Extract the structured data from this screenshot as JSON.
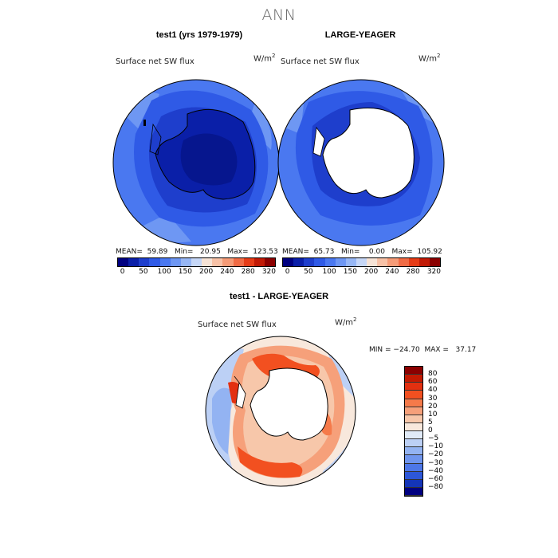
{
  "title": "ANN",
  "panels": {
    "left": {
      "title": "test1 (yrs 1979-1979)",
      "variable": "Surface net SW flux",
      "units_base": "W/m",
      "units_exp": "2",
      "stats": "MEAN=  59.89   Min=   20.95   Max=  123.53"
    },
    "right": {
      "title": "LARGE-YEAGER",
      "variable": "Surface net SW flux",
      "units_base": "W/m",
      "units_exp": "2",
      "stats": "MEAN=  65.73   Min=    0.00   Max=  105.92"
    },
    "diff": {
      "title": "test1 - LARGE-YEAGER",
      "variable": "Surface net SW flux",
      "units_base": "W/m",
      "units_exp": "2",
      "minmax": "MIN = −24.70  MAX =   37.17"
    }
  },
  "colorbar_top": {
    "colors": [
      "#000080",
      "#0a1fa8",
      "#1e3ecc",
      "#2f5ae6",
      "#4a78f0",
      "#6e97f3",
      "#97b7f5",
      "#c6d7f7",
      "#f6e3d6",
      "#f7c1a6",
      "#f59b77",
      "#f06b45",
      "#e63c17",
      "#c11a06",
      "#8b0000"
    ],
    "labels": [
      "0",
      "50",
      "100",
      "150",
      "200",
      "240",
      "280",
      "320"
    ]
  },
  "colorbar_diff": {
    "colors": [
      "#8b0000",
      "#c31a02",
      "#e33010",
      "#f25020",
      "#f57a4a",
      "#f6a07a",
      "#f7c7aa",
      "#f8e8dc",
      "#e1ebf8",
      "#bcd0f5",
      "#93b3f2",
      "#6f95ee",
      "#4d77e8",
      "#2d57d8",
      "#1435b8",
      "#000080"
    ],
    "labels": [
      "80",
      "60",
      "40",
      "30",
      "20",
      "10",
      "5",
      "0",
      "−5",
      "−10",
      "−20",
      "−30",
      "−40",
      "−60",
      "−80"
    ]
  }
}
